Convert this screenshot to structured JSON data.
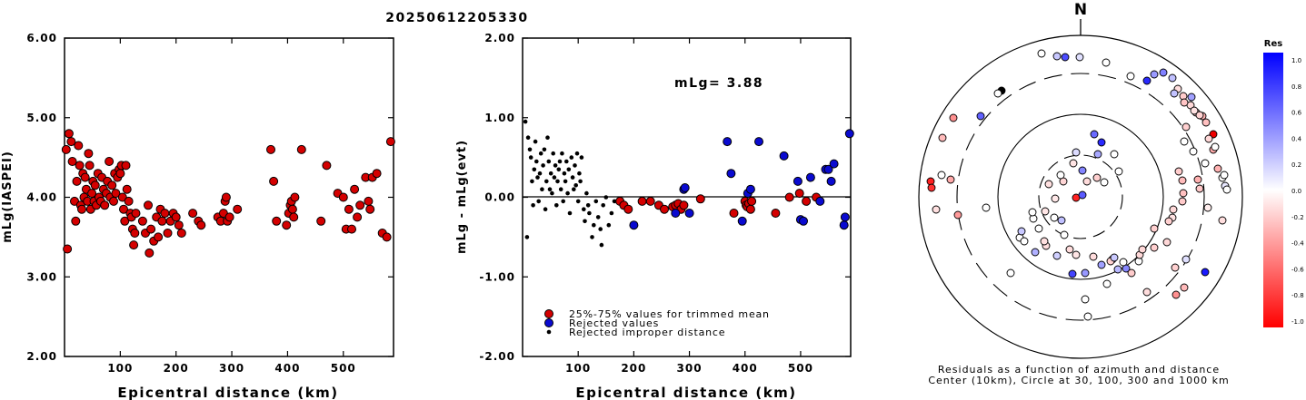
{
  "figure_title": "20250612205330",
  "chart_data": [
    {
      "type": "scatter",
      "xlabel": "Epicentral distance (km)",
      "ylabel": "mLg(IASPEI)",
      "xlim": [
        0,
        590
      ],
      "ylim": [
        2.0,
        6.0
      ],
      "x_ticks": [
        "100",
        "200",
        "300",
        "400",
        "500"
      ],
      "y_ticks": [
        "2.00",
        "3.00",
        "4.00",
        "5.00",
        "6.00"
      ],
      "series": [
        {
          "color": "#d40000",
          "points": [
            [
              3,
              4.6
            ],
            [
              5,
              3.35
            ],
            [
              8,
              4.8
            ],
            [
              12,
              4.7
            ],
            [
              14,
              4.45
            ],
            [
              18,
              3.95
            ],
            [
              20,
              3.7
            ],
            [
              22,
              4.2
            ],
            [
              25,
              4.65
            ],
            [
              27,
              4.4
            ],
            [
              29,
              3.9
            ],
            [
              31,
              3.85
            ],
            [
              33,
              4.3
            ],
            [
              35,
              4.0
            ],
            [
              37,
              4.25
            ],
            [
              39,
              4.1
            ],
            [
              41,
              3.95
            ],
            [
              43,
              4.55
            ],
            [
              45,
              4.4
            ],
            [
              47,
              3.85
            ],
            [
              49,
              4.05
            ],
            [
              51,
              4.2
            ],
            [
              53,
              3.95
            ],
            [
              55,
              4.15
            ],
            [
              57,
              3.9
            ],
            [
              60,
              4.3
            ],
            [
              62,
              4.0
            ],
            [
              65,
              3.95
            ],
            [
              67,
              4.25
            ],
            [
              70,
              4.1
            ],
            [
              72,
              3.9
            ],
            [
              75,
              4.05
            ],
            [
              77,
              4.2
            ],
            [
              80,
              4.45
            ],
            [
              82,
              4.0
            ],
            [
              85,
              4.15
            ],
            [
              88,
              3.95
            ],
            [
              90,
              4.3
            ],
            [
              92,
              4.05
            ],
            [
              95,
              4.25
            ],
            [
              98,
              4.35
            ],
            [
              100,
              4.3
            ],
            [
              102,
              4.4
            ],
            [
              104,
              4.0
            ],
            [
              106,
              3.85
            ],
            [
              108,
              3.7
            ],
            [
              110,
              4.4
            ],
            [
              112,
              4.1
            ],
            [
              115,
              3.95
            ],
            [
              118,
              3.8
            ],
            [
              120,
              3.75
            ],
            [
              122,
              3.6
            ],
            [
              124,
              3.4
            ],
            [
              126,
              3.55
            ],
            [
              128,
              3.8
            ],
            [
              140,
              3.7
            ],
            [
              145,
              3.55
            ],
            [
              150,
              3.9
            ],
            [
              152,
              3.3
            ],
            [
              155,
              3.6
            ],
            [
              160,
              3.45
            ],
            [
              165,
              3.75
            ],
            [
              168,
              3.5
            ],
            [
              172,
              3.85
            ],
            [
              175,
              3.7
            ],
            [
              180,
              3.8
            ],
            [
              185,
              3.55
            ],
            [
              190,
              3.7
            ],
            [
              195,
              3.8
            ],
            [
              200,
              3.75
            ],
            [
              205,
              3.65
            ],
            [
              210,
              3.55
            ],
            [
              230,
              3.8
            ],
            [
              240,
              3.7
            ],
            [
              245,
              3.65
            ],
            [
              275,
              3.75
            ],
            [
              280,
              3.7
            ],
            [
              285,
              3.8
            ],
            [
              288,
              3.95
            ],
            [
              290,
              4.0
            ],
            [
              292,
              3.7
            ],
            [
              296,
              3.75
            ],
            [
              310,
              3.85
            ],
            [
              370,
              4.6
            ],
            [
              375,
              4.2
            ],
            [
              380,
              3.7
            ],
            [
              398,
              3.65
            ],
            [
              402,
              3.8
            ],
            [
              405,
              3.9
            ],
            [
              407,
              3.95
            ],
            [
              409,
              3.85
            ],
            [
              411,
              3.75
            ],
            [
              413,
              4.0
            ],
            [
              425,
              4.6
            ],
            [
              460,
              3.7
            ],
            [
              470,
              4.4
            ],
            [
              490,
              4.05
            ],
            [
              500,
              4.0
            ],
            [
              505,
              3.6
            ],
            [
              510,
              3.85
            ],
            [
              515,
              3.6
            ],
            [
              520,
              4.1
            ],
            [
              525,
              3.75
            ],
            [
              530,
              3.9
            ],
            [
              540,
              4.25
            ],
            [
              545,
              3.95
            ],
            [
              548,
              3.85
            ],
            [
              552,
              4.25
            ],
            [
              560,
              4.3
            ],
            [
              570,
              3.55
            ],
            [
              578,
              3.5
            ],
            [
              585,
              4.7
            ]
          ]
        }
      ]
    },
    {
      "type": "scatter",
      "xlabel": "Epicentral distance (km)",
      "ylabel": "mLg - mLg(evt)",
      "annotation": "mLg= 3.88",
      "xlim": [
        0,
        590
      ],
      "ylim": [
        -2.0,
        2.0
      ],
      "x_ticks": [
        "100",
        "200",
        "300",
        "400",
        "500"
      ],
      "y_ticks": [
        "-2.00",
        "-1.00",
        "0.00",
        "1.00",
        "2.00"
      ],
      "reference_line": 0.0,
      "series": [
        {
          "name": "25%-75% values for trimmed mean",
          "color": "#d40000",
          "points": [
            [
              175,
              -0.05
            ],
            [
              182,
              -0.1
            ],
            [
              190,
              -0.15
            ],
            [
              215,
              -0.05
            ],
            [
              230,
              -0.05
            ],
            [
              245,
              -0.1
            ],
            [
              255,
              -0.15
            ],
            [
              270,
              -0.12
            ],
            [
              275,
              -0.1
            ],
            [
              280,
              -0.08
            ],
            [
              285,
              -0.15
            ],
            [
              290,
              -0.1
            ],
            [
              320,
              -0.02
            ],
            [
              380,
              -0.2
            ],
            [
              400,
              -0.05
            ],
            [
              402,
              -0.1
            ],
            [
              404,
              -0.12
            ],
            [
              407,
              -0.08
            ],
            [
              410,
              -0.15
            ],
            [
              412,
              -0.05
            ],
            [
              455,
              -0.2
            ],
            [
              480,
              0.0
            ],
            [
              498,
              0.05
            ],
            [
              510,
              -0.05
            ],
            [
              528,
              0.0
            ]
          ]
        },
        {
          "name": "Rejected values",
          "color": "#0a0ad0",
          "points": [
            [
              200,
              -0.35
            ],
            [
              275,
              -0.2
            ],
            [
              290,
              0.1
            ],
            [
              292,
              0.12
            ],
            [
              300,
              -0.2
            ],
            [
              368,
              0.7
            ],
            [
              375,
              0.3
            ],
            [
              395,
              -0.3
            ],
            [
              405,
              0.05
            ],
            [
              410,
              0.1
            ],
            [
              425,
              0.7
            ],
            [
              470,
              0.52
            ],
            [
              495,
              0.2
            ],
            [
              500,
              -0.28
            ],
            [
              505,
              -0.3
            ],
            [
              518,
              0.25
            ],
            [
              535,
              -0.05
            ],
            [
              545,
              0.35
            ],
            [
              550,
              0.35
            ],
            [
              555,
              0.2
            ],
            [
              560,
              0.42
            ],
            [
              578,
              -0.35
            ],
            [
              580,
              -0.25
            ],
            [
              588,
              0.8
            ]
          ]
        },
        {
          "name": "Rejected improper distance",
          "color": "#000000",
          "points": [
            [
              5,
              0.95
            ],
            [
              8,
              -0.5
            ],
            [
              10,
              0.75
            ],
            [
              13,
              0.6
            ],
            [
              15,
              0.5
            ],
            [
              17,
              0.2
            ],
            [
              19,
              -0.1
            ],
            [
              21,
              0.35
            ],
            [
              23,
              0.7
            ],
            [
              25,
              0.45
            ],
            [
              27,
              0.25
            ],
            [
              29,
              -0.05
            ],
            [
              31,
              0.3
            ],
            [
              33,
              0.55
            ],
            [
              35,
              0.1
            ],
            [
              37,
              0.4
            ],
            [
              39,
              0.6
            ],
            [
              41,
              -0.15
            ],
            [
              43,
              0.2
            ],
            [
              45,
              0.75
            ],
            [
              47,
              0.45
            ],
            [
              49,
              0.1
            ],
            [
              51,
              0.3
            ],
            [
              53,
              0.05
            ],
            [
              55,
              0.55
            ],
            [
              57,
              0.25
            ],
            [
              59,
              0.4
            ],
            [
              61,
              -0.1
            ],
            [
              63,
              0.2
            ],
            [
              65,
              0.35
            ],
            [
              67,
              0.45
            ],
            [
              69,
              0.1
            ],
            [
              71,
              0.55
            ],
            [
              73,
              -0.05
            ],
            [
              75,
              0.3
            ],
            [
              77,
              0.2
            ],
            [
              79,
              0.45
            ],
            [
              81,
              0.05
            ],
            [
              83,
              0.35
            ],
            [
              85,
              -0.2
            ],
            [
              88,
              0.5
            ],
            [
              90,
              0.25
            ],
            [
              92,
              0.1
            ],
            [
              94,
              0.4
            ],
            [
              96,
              0.15
            ],
            [
              98,
              0.55
            ],
            [
              100,
              -0.05
            ],
            [
              102,
              0.3
            ],
            [
              104,
              0.2
            ],
            [
              106,
              0.5
            ],
            [
              110,
              -0.15
            ],
            [
              112,
              -0.3
            ],
            [
              115,
              0.05
            ],
            [
              118,
              -0.1
            ],
            [
              120,
              -0.2
            ],
            [
              125,
              -0.5
            ],
            [
              128,
              -0.35
            ],
            [
              132,
              -0.05
            ],
            [
              136,
              -0.25
            ],
            [
              140,
              -0.4
            ],
            [
              142,
              -0.6
            ],
            [
              145,
              -0.1
            ],
            [
              150,
              0.0
            ],
            [
              155,
              -0.35
            ],
            [
              160,
              -0.2
            ],
            [
              165,
              -0.05
            ]
          ]
        }
      ]
    }
  ],
  "polar_plot": {
    "north_label": "N",
    "caption_line1": "Residuals as a function of azimuth and distance",
    "caption_line2": "Center (10km), Circle at 30, 100, 300 and 1000 km"
  },
  "colorbar": {
    "title": "Res",
    "labels": [
      "1.0",
      "0.8",
      "0.6",
      "0.4",
      "0.2",
      "0.0",
      "-0.2",
      "-0.4",
      "-0.6",
      "-0.8",
      "-1.0"
    ],
    "top_color": "#0000ff",
    "bottom_color": "#ff0000"
  }
}
